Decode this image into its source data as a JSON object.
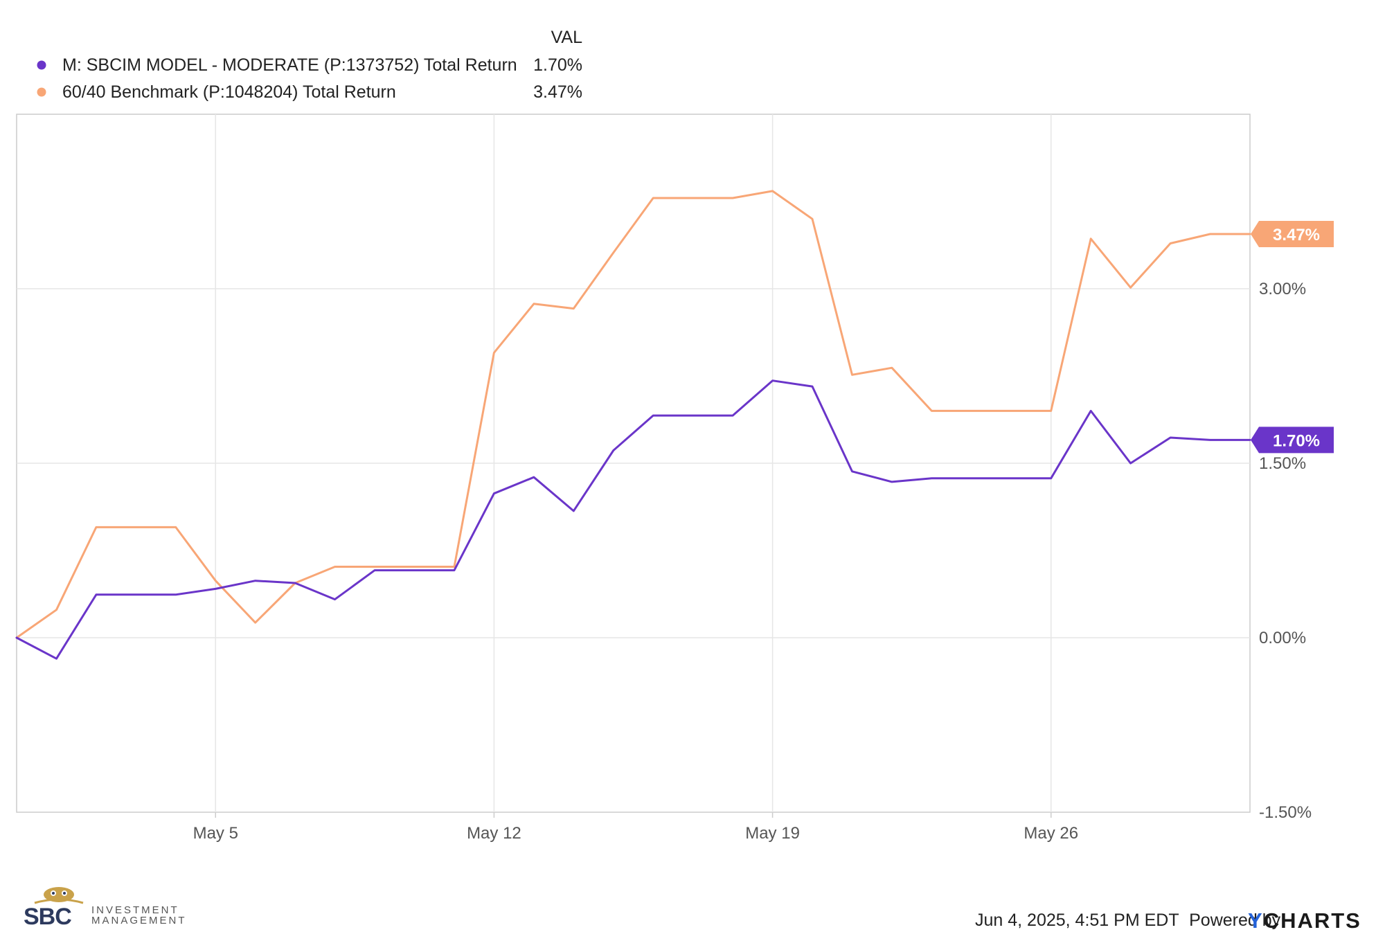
{
  "colors": {
    "series_1": "#6a35c9",
    "series_2": "#f8a676",
    "grid": "#e6e6e6",
    "frame": "#cccccc",
    "brand_blue": "#2563d9",
    "logo_gold": "#c9a24a"
  },
  "legend": {
    "header": "VAL",
    "items": [
      {
        "label": "M: SBCIM MODEL - MODERATE (P:1373752) Total Return",
        "value": "1.70%"
      },
      {
        "label": "60/40 Benchmark (P:1048204) Total Return",
        "value": "3.47%"
      }
    ]
  },
  "chart_data": {
    "type": "line",
    "x_tick_labels": [
      "May 5",
      "May 12",
      "May 19",
      "May 26"
    ],
    "y_tick_labels": [
      "3.00%",
      "1.50%",
      "0.00%",
      "-1.50%"
    ],
    "y_ticks": [
      3.0,
      1.5,
      0.0,
      -1.5
    ],
    "ylim": [
      -1.5,
      4.5
    ],
    "x_tick_indices": [
      5,
      12,
      19,
      26
    ],
    "x_range": [
      0,
      31
    ],
    "grid": true,
    "legend_position": "top-left",
    "series": [
      {
        "name": "M: SBCIM MODEL - MODERATE (P:1373752) Total Return",
        "end_label": "1.70%",
        "x": [
          0,
          1,
          2,
          3,
          4,
          5,
          6,
          7,
          8,
          9,
          10,
          11,
          12,
          13,
          14,
          15,
          16,
          17,
          18,
          19,
          20,
          21,
          22,
          23,
          24,
          25,
          26,
          27,
          28,
          29,
          30,
          31
        ],
        "values": [
          0.0,
          -0.18,
          0.37,
          0.37,
          0.37,
          0.42,
          0.49,
          0.47,
          0.33,
          0.58,
          0.58,
          0.58,
          1.24,
          1.38,
          1.09,
          1.61,
          1.91,
          1.91,
          1.91,
          2.21,
          2.16,
          1.43,
          1.34,
          1.37,
          1.37,
          1.37,
          1.37,
          1.95,
          1.5,
          1.72,
          1.7,
          1.7
        ]
      },
      {
        "name": "60/40 Benchmark (P:1048204) Total Return",
        "end_label": "3.47%",
        "x": [
          0,
          1,
          2,
          3,
          4,
          5,
          6,
          7,
          8,
          9,
          10,
          11,
          12,
          13,
          14,
          15,
          16,
          17,
          18,
          19,
          20,
          21,
          22,
          23,
          24,
          25,
          26,
          27,
          28,
          29,
          30,
          31
        ],
        "values": [
          0.0,
          0.24,
          0.95,
          0.95,
          0.95,
          0.49,
          0.13,
          0.47,
          0.61,
          0.61,
          0.61,
          0.61,
          2.45,
          2.87,
          2.83,
          3.31,
          3.78,
          3.78,
          3.78,
          3.84,
          3.6,
          2.26,
          2.32,
          1.95,
          1.95,
          1.95,
          1.95,
          3.43,
          3.01,
          3.39,
          3.47,
          3.47
        ]
      }
    ]
  },
  "footer": {
    "timestamp": "Jun 4, 2025, 4:51 PM EDT",
    "powered_by": "Powered by",
    "brand_y": "Y",
    "brand_rest": "CHARTS"
  },
  "logo": {
    "letters": "SBC",
    "line1": "INVESTMENT",
    "line2": "MANAGEMENT"
  }
}
